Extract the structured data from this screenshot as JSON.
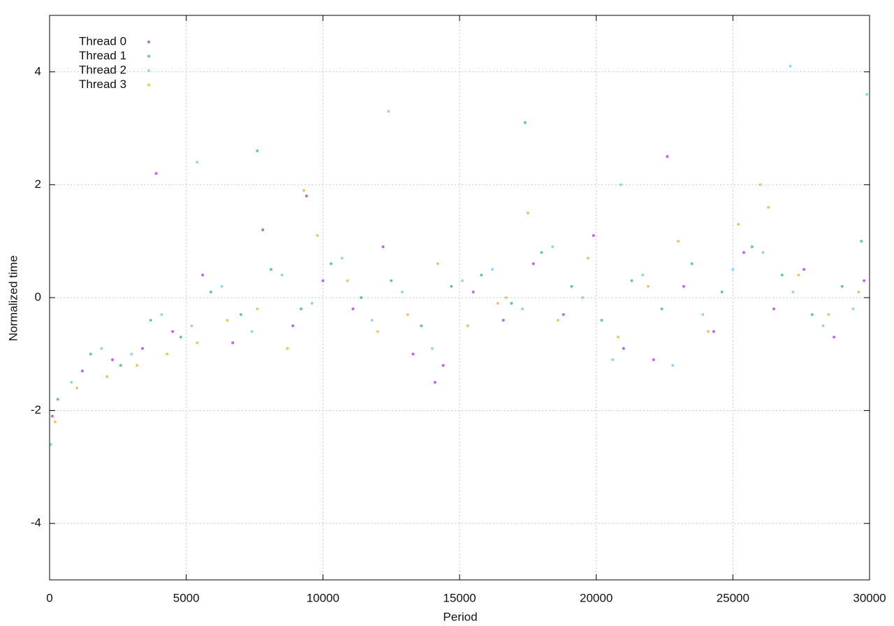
{
  "chart_data": {
    "type": "scatter",
    "x_label": "Period",
    "y_label": "Normalized time",
    "xlim": [
      0,
      30000
    ],
    "ylim": [
      -5,
      5
    ],
    "xticks": [
      0,
      5000,
      10000,
      15000,
      20000,
      25000,
      30000
    ],
    "yticks": [
      -4,
      -2,
      0,
      2,
      4
    ],
    "grid": true,
    "legend": "upper left",
    "series": [
      {
        "name": "Thread 0",
        "color": "#9400d3",
        "x": [
          100,
          1200,
          2300,
          3400,
          4500,
          5600,
          6700,
          7800,
          8900,
          10000,
          11100,
          12200,
          13300,
          14400,
          15500,
          16600,
          17700,
          18800,
          19900,
          21000,
          22100,
          23200,
          24300,
          25400,
          26500,
          27600,
          28700,
          29800,
          3900,
          9400,
          14100,
          22600
        ],
        "values": [
          -2.1,
          -1.3,
          -1.1,
          -0.9,
          -0.6,
          0.4,
          -0.8,
          1.2,
          -0.5,
          0.3,
          -0.2,
          0.9,
          -1.0,
          -1.2,
          0.1,
          -0.4,
          0.6,
          -0.3,
          1.1,
          -0.9,
          -1.1,
          0.2,
          -0.6,
          0.8,
          -0.2,
          0.5,
          -0.7,
          0.3,
          2.2,
          1.8,
          -1.5,
          2.5
        ]
      },
      {
        "name": "Thread 1",
        "color": "#009e73",
        "x": [
          300,
          1500,
          2600,
          3700,
          4800,
          5900,
          7000,
          8100,
          9200,
          10300,
          11400,
          12500,
          13600,
          14700,
          15800,
          16900,
          18000,
          19100,
          20200,
          21300,
          22400,
          23500,
          24600,
          25700,
          26800,
          27900,
          29000,
          29700,
          7600,
          17400
        ],
        "values": [
          -1.8,
          -1.0,
          -1.2,
          -0.4,
          -0.7,
          0.1,
          -0.3,
          0.5,
          -0.2,
          0.6,
          0.0,
          0.3,
          -0.5,
          0.2,
          0.4,
          -0.1,
          0.8,
          0.2,
          -0.4,
          0.3,
          -0.2,
          0.6,
          0.1,
          0.9,
          0.4,
          -0.3,
          0.2,
          1.0,
          2.6,
          3.1
        ]
      },
      {
        "name": "Thread 2",
        "color": "#56b4e9",
        "x": [
          50,
          800,
          1900,
          3000,
          4100,
          5200,
          6300,
          7400,
          8500,
          9600,
          10700,
          11800,
          12900,
          14000,
          15100,
          16200,
          17300,
          18400,
          19500,
          20600,
          21700,
          22800,
          23900,
          25000,
          26100,
          27200,
          28300,
          29400,
          5400,
          12400,
          20900,
          27100,
          29900
        ],
        "values": [
          -2.6,
          -1.5,
          -0.9,
          -1.0,
          -0.3,
          -0.5,
          0.2,
          -0.6,
          0.4,
          -0.1,
          0.7,
          -0.4,
          0.1,
          -0.9,
          0.3,
          0.5,
          -0.2,
          0.9,
          0.0,
          -1.1,
          0.4,
          -1.2,
          -0.3,
          0.5,
          0.8,
          0.1,
          -0.5,
          -0.2,
          2.4,
          3.3,
          2.0,
          4.1,
          3.6
        ]
      },
      {
        "name": "Thread 3",
        "color": "#e69f00",
        "x": [
          200,
          1000,
          2100,
          3200,
          4300,
          5400,
          6500,
          7600,
          8700,
          9800,
          10900,
          12000,
          13100,
          14200,
          15300,
          16400,
          16700,
          17500,
          18600,
          19700,
          20800,
          21900,
          23000,
          24100,
          25200,
          26300,
          27400,
          28500,
          29600,
          9300,
          26000
        ],
        "values": [
          -2.2,
          -1.6,
          -1.4,
          -1.2,
          -1.0,
          -0.8,
          -0.4,
          -0.2,
          -0.9,
          1.1,
          0.3,
          -0.6,
          -0.3,
          0.6,
          -0.5,
          -0.1,
          0.0,
          1.5,
          -0.4,
          0.7,
          -0.7,
          0.2,
          1.0,
          -0.6,
          1.3,
          1.6,
          0.4,
          -0.3,
          0.1,
          1.9,
          2.0
        ]
      }
    ]
  }
}
